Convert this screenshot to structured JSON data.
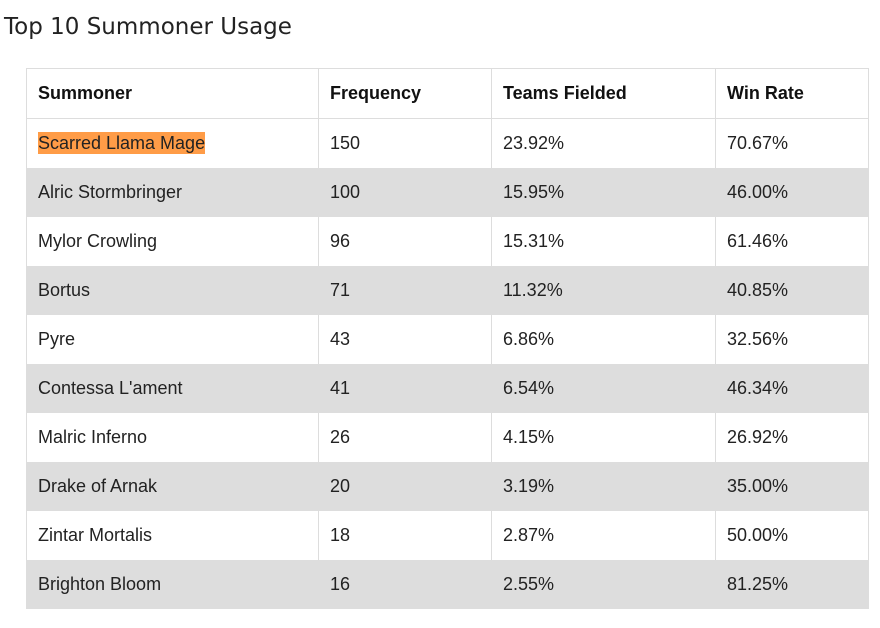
{
  "page": {
    "title": "Top 10 Summoner Usage"
  },
  "colors": {
    "highlight": "#ff9c47",
    "stripe": "#dddddd",
    "border": "#dddddd"
  },
  "table": {
    "headers": [
      "Summoner",
      "Frequency",
      "Teams Fielded",
      "Win Rate"
    ],
    "rows": [
      {
        "summoner": "Scarred Llama Mage",
        "frequency": "150",
        "teams_fielded": "23.92%",
        "win_rate": "70.67%",
        "highlighted": true
      },
      {
        "summoner": "Alric Stormbringer",
        "frequency": "100",
        "teams_fielded": "15.95%",
        "win_rate": "46.00%"
      },
      {
        "summoner": "Mylor Crowling",
        "frequency": "96",
        "teams_fielded": "15.31%",
        "win_rate": "61.46%"
      },
      {
        "summoner": "Bortus",
        "frequency": "71",
        "teams_fielded": "11.32%",
        "win_rate": "40.85%"
      },
      {
        "summoner": "Pyre",
        "frequency": "43",
        "teams_fielded": "6.86%",
        "win_rate": "32.56%"
      },
      {
        "summoner": "Contessa L'ament",
        "frequency": "41",
        "teams_fielded": "6.54%",
        "win_rate": "46.34%"
      },
      {
        "summoner": "Malric Inferno",
        "frequency": "26",
        "teams_fielded": "4.15%",
        "win_rate": "26.92%"
      },
      {
        "summoner": "Drake of Arnak",
        "frequency": "20",
        "teams_fielded": "3.19%",
        "win_rate": "35.00%"
      },
      {
        "summoner": "Zintar Mortalis",
        "frequency": "18",
        "teams_fielded": "2.87%",
        "win_rate": "50.00%"
      },
      {
        "summoner": "Brighton Bloom",
        "frequency": "16",
        "teams_fielded": "2.55%",
        "win_rate": "81.25%"
      }
    ]
  }
}
